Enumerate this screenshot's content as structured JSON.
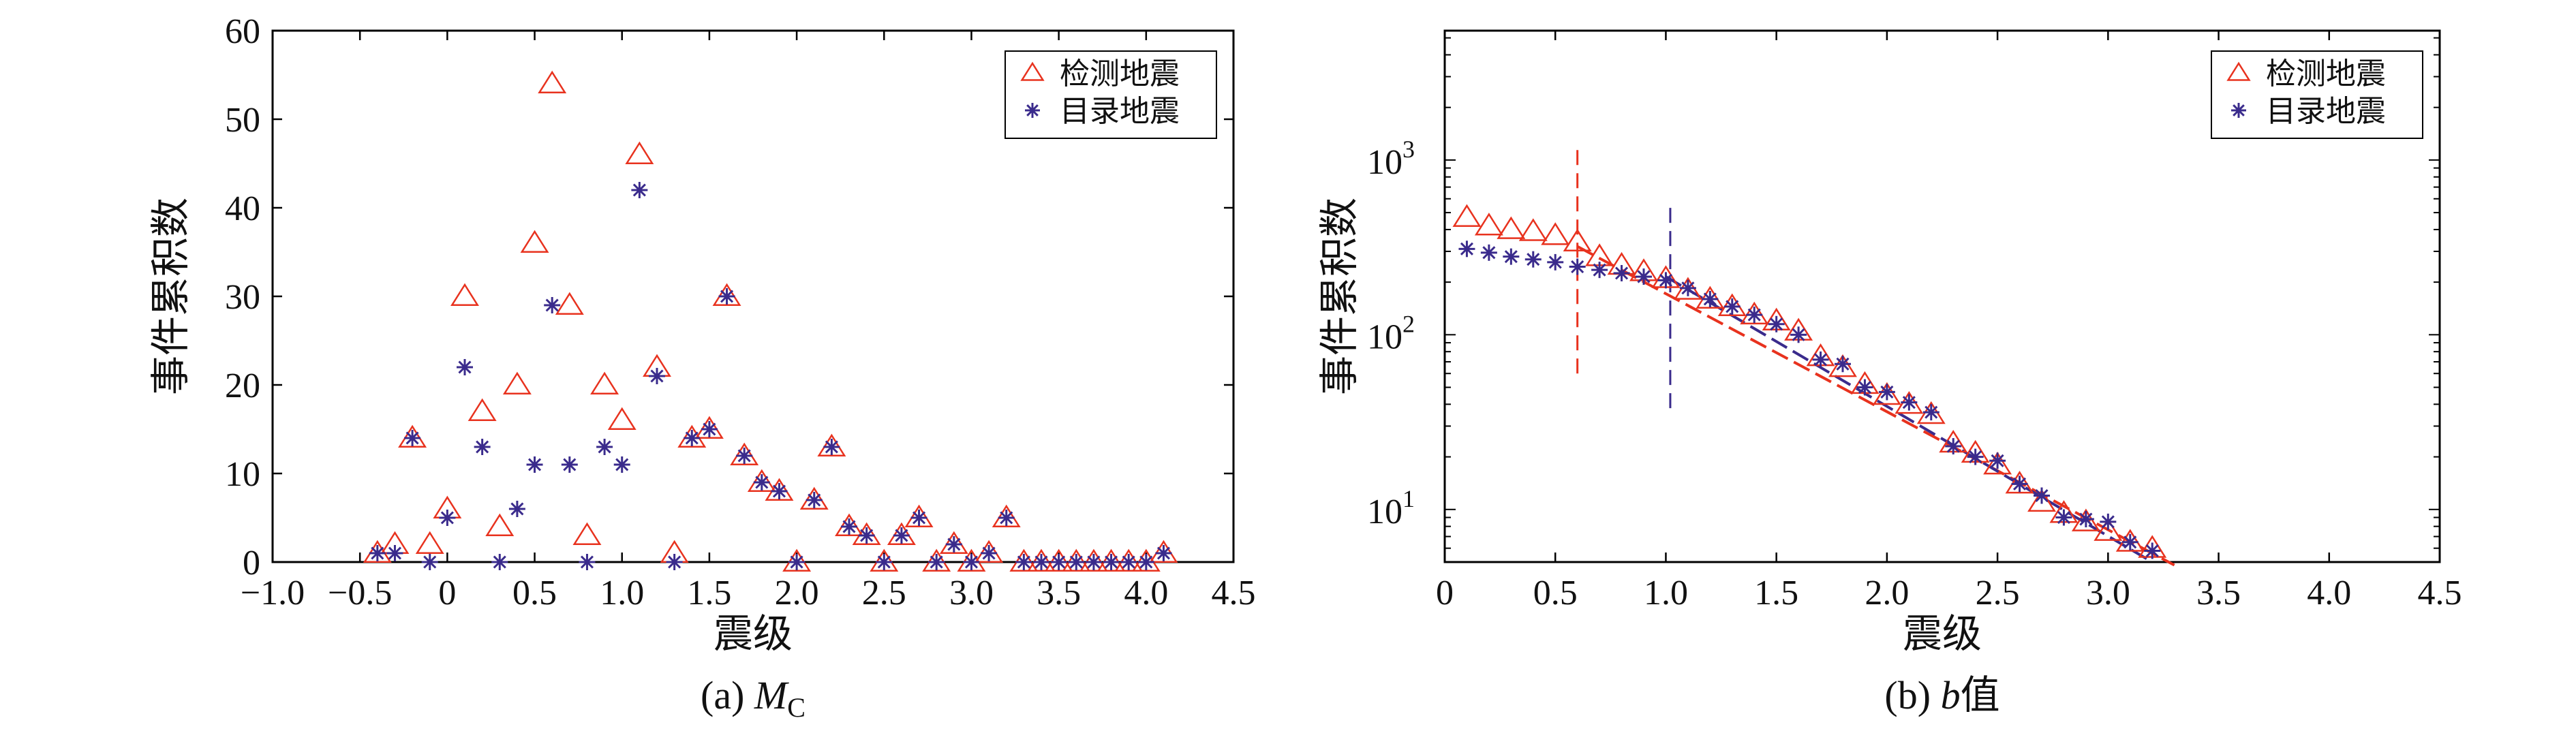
{
  "colors": {
    "detected": "#e8321e",
    "catalog": "#3a2b8c",
    "axis": "#000000"
  },
  "legend": {
    "detected": "检测地震",
    "catalog": "目录地震",
    "placement": "top-right"
  },
  "chart_data": [
    {
      "id": "a",
      "type": "scatter",
      "caption_prefix": "(a) ",
      "caption_var": "M",
      "caption_sub": "C",
      "xlabel": "震级",
      "ylabel": "事件累积数",
      "xlim": [
        -1.0,
        4.5
      ],
      "ylim": [
        0,
        60
      ],
      "xticks": [
        -1.0,
        -0.5,
        0,
        0.5,
        1.0,
        1.5,
        2.0,
        2.5,
        3.0,
        3.5,
        4.0,
        4.5
      ],
      "xtick_labels": [
        "−1.0",
        "−0.5",
        "0",
        "0.5",
        "1.0",
        "1.5",
        "2.0",
        "2.5",
        "3.0",
        "3.5",
        "4.0",
        "4.5"
      ],
      "yticks": [
        0,
        10,
        20,
        30,
        40,
        50,
        60
      ],
      "ytick_labels": [
        "0",
        "10",
        "20",
        "30",
        "40",
        "50",
        "60"
      ],
      "series": [
        {
          "name": "检测地震",
          "marker": "triangle",
          "x": [
            -0.4,
            -0.3,
            -0.2,
            -0.1,
            0.0,
            0.1,
            0.2,
            0.3,
            0.4,
            0.5,
            0.6,
            0.7,
            0.8,
            0.9,
            1.0,
            1.1,
            1.2,
            1.3,
            1.4,
            1.5,
            1.6,
            1.7,
            1.8,
            1.9,
            2.0,
            2.1,
            2.2,
            2.3,
            2.4,
            2.5,
            2.6,
            2.7,
            2.8,
            2.9,
            3.0,
            3.1,
            3.2,
            3.3,
            3.4,
            3.5,
            3.6,
            3.7,
            3.8,
            3.9,
            4.0,
            4.1
          ],
          "y": [
            1,
            2,
            14,
            2,
            6,
            30,
            17,
            4,
            20,
            36,
            54,
            29,
            3,
            20,
            16,
            46,
            22,
            1,
            14,
            15,
            30,
            12,
            9,
            8,
            0,
            7,
            13,
            4,
            3,
            0,
            3,
            5,
            0,
            2,
            0,
            1,
            5,
            0,
            0,
            0,
            0,
            0,
            0,
            0,
            0,
            1
          ]
        },
        {
          "name": "目录地震",
          "marker": "asterisk",
          "x": [
            -0.4,
            -0.3,
            -0.2,
            -0.1,
            0.0,
            0.1,
            0.2,
            0.3,
            0.4,
            0.5,
            0.6,
            0.7,
            0.8,
            0.9,
            1.0,
            1.1,
            1.2,
            1.3,
            1.4,
            1.5,
            1.6,
            1.7,
            1.8,
            1.9,
            2.0,
            2.1,
            2.2,
            2.3,
            2.4,
            2.5,
            2.6,
            2.7,
            2.8,
            2.9,
            3.0,
            3.1,
            3.2,
            3.3,
            3.4,
            3.5,
            3.6,
            3.7,
            3.8,
            3.9,
            4.0,
            4.1
          ],
          "y": [
            1,
            1,
            14,
            0,
            5,
            22,
            13,
            0,
            6,
            11,
            29,
            11,
            0,
            13,
            11,
            42,
            21,
            0,
            14,
            15,
            30,
            12,
            9,
            8,
            0,
            7,
            13,
            4,
            3,
            0,
            3,
            5,
            0,
            2,
            0,
            1,
            5,
            0,
            0,
            0,
            0,
            0,
            0,
            0,
            0,
            1
          ]
        }
      ]
    },
    {
      "id": "b",
      "type": "scatter",
      "yscale": "log",
      "caption_prefix": "(b) ",
      "caption_var": "b",
      "caption_suffix": "值",
      "xlabel": "震级",
      "ylabel": "事件累积数",
      "xlim": [
        0,
        4.5
      ],
      "ylim": [
        5,
        5500
      ],
      "xticks": [
        0,
        0.5,
        1.0,
        1.5,
        2.0,
        2.5,
        3.0,
        3.5,
        4.0,
        4.5
      ],
      "xtick_labels": [
        "0",
        "0.5",
        "1.0",
        "1.5",
        "2.0",
        "2.5",
        "3.0",
        "3.5",
        "4.0",
        "4.5"
      ],
      "yticks": [
        10,
        100,
        1000
      ],
      "ytick_labels": [
        {
          "base": "10",
          "exp": "1"
        },
        {
          "base": "10",
          "exp": "2"
        },
        {
          "base": "10",
          "exp": "3"
        }
      ],
      "series": [
        {
          "name": "检测地震",
          "marker": "triangle",
          "x": [
            0.1,
            0.2,
            0.3,
            0.4,
            0.5,
            0.6,
            0.7,
            0.8,
            0.9,
            1.0,
            1.1,
            1.2,
            1.3,
            1.4,
            1.5,
            1.6,
            1.7,
            1.8,
            1.9,
            2.0,
            2.1,
            2.2,
            2.3,
            2.4,
            2.5,
            2.6,
            2.7,
            2.8,
            2.9,
            3.0,
            3.1,
            3.2
          ],
          "y": [
            470,
            420,
            400,
            390,
            370,
            340,
            280,
            250,
            230,
            210,
            180,
            160,
            145,
            130,
            120,
            105,
            75,
            65,
            52,
            45,
            40,
            35,
            24,
            21,
            18,
            14,
            11,
            9.5,
            8.5,
            7.5,
            6.5,
            6.0
          ]
        },
        {
          "name": "目录地震",
          "marker": "asterisk",
          "x": [
            0.1,
            0.2,
            0.3,
            0.4,
            0.5,
            0.6,
            0.7,
            0.8,
            0.9,
            1.0,
            1.1,
            1.2,
            1.3,
            1.4,
            1.5,
            1.6,
            1.7,
            1.8,
            1.9,
            2.0,
            2.1,
            2.2,
            2.3,
            2.4,
            2.5,
            2.6,
            2.7,
            2.8,
            2.9,
            3.0,
            3.1,
            3.2
          ],
          "y": [
            310,
            295,
            280,
            270,
            260,
            245,
            235,
            225,
            215,
            205,
            185,
            160,
            145,
            130,
            115,
            100,
            72,
            68,
            50,
            47,
            41,
            36,
            23,
            20,
            19,
            14,
            12,
            9.0,
            8.8,
            8.5,
            6.5,
            5.8
          ]
        }
      ],
      "fit_lines": [
        {
          "name": "detected-fit",
          "color_key": "detected",
          "x": [
            0.6,
            3.3
          ],
          "y": [
            320,
            4.8
          ]
        },
        {
          "name": "catalog-fit",
          "color_key": "catalog",
          "x": [
            1.0,
            3.2
          ],
          "y": [
            215,
            5.0
          ]
        }
      ],
      "mc_lines": [
        {
          "name": "detected-mc",
          "color_key": "detected",
          "x": 0.6,
          "y": [
            60,
            1150
          ]
        },
        {
          "name": "catalog-mc",
          "color_key": "catalog",
          "x": 1.02,
          "y": [
            38,
            560
          ]
        }
      ]
    }
  ]
}
